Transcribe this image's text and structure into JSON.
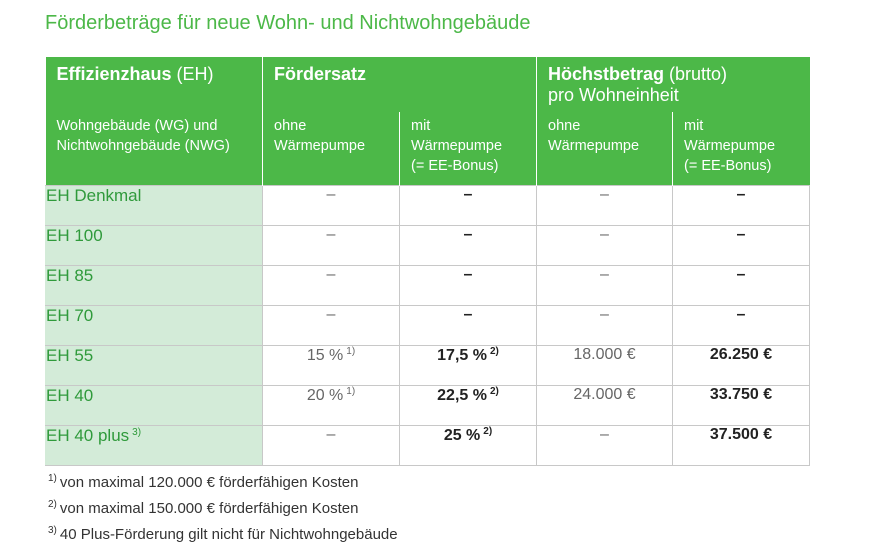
{
  "title": "Förderbeträge für neue Wohn- und Nichtwohngebäude",
  "table": {
    "header": {
      "groups": [
        {
          "bold": "Effizienzhaus",
          "normal": "(EH)"
        },
        {
          "bold": "Fördersatz"
        },
        {
          "bold": "Höchstbetrag",
          "normal": "(brutto)",
          "line2": "pro Wohneinheit"
        }
      ],
      "sub": [
        [
          "Wohngebäude (WG) und",
          "Nichtwohngebäude (NWG)"
        ],
        [
          "ohne",
          "Wärmepumpe"
        ],
        [
          "mit",
          "Wärmepumpe",
          "(= EE-Bonus)"
        ],
        [
          "ohne",
          "Wärmepumpe"
        ],
        [
          "mit",
          "Wärmepumpe",
          "(= EE-Bonus)"
        ]
      ]
    },
    "rows": [
      {
        "label": "EH Denkmal",
        "cells": [
          {
            "text": "–"
          },
          {
            "text": "–"
          },
          {
            "text": "–"
          },
          {
            "text": "–"
          }
        ]
      },
      {
        "label": "EH 100",
        "cells": [
          {
            "text": "–"
          },
          {
            "text": "–"
          },
          {
            "text": "–"
          },
          {
            "text": "–"
          }
        ]
      },
      {
        "label": "EH 85",
        "cells": [
          {
            "text": "–"
          },
          {
            "text": "–"
          },
          {
            "text": "–"
          },
          {
            "text": "–"
          }
        ]
      },
      {
        "label": "EH 70",
        "cells": [
          {
            "text": "–"
          },
          {
            "text": "–"
          },
          {
            "text": "–"
          },
          {
            "text": "–"
          }
        ]
      },
      {
        "label": "EH 55",
        "cells": [
          {
            "text": "15 %",
            "note": "1)"
          },
          {
            "text": "17,5 %",
            "note": "2)"
          },
          {
            "text": "18.000 €"
          },
          {
            "text": "26.250 €"
          }
        ]
      },
      {
        "label": "EH 40",
        "cells": [
          {
            "text": "20 %",
            "note": "1)"
          },
          {
            "text": "22,5 %",
            "note": "2)"
          },
          {
            "text": "24.000 €"
          },
          {
            "text": "33.750 €"
          }
        ]
      },
      {
        "label": "EH 40 plus",
        "note": "3)",
        "cells": [
          {
            "text": "–"
          },
          {
            "text": "25 %",
            "note": "2)"
          },
          {
            "text": "–"
          },
          {
            "text": "37.500 €"
          }
        ]
      }
    ]
  },
  "footnotes": [
    {
      "mark": "1)",
      "text": "von maximal 120.000 € förderfähigen Kosten"
    },
    {
      "mark": "2)",
      "text": "von maximal 150.000 € förderfähigen Kosten"
    },
    {
      "mark": "3)",
      "text": "40 Plus-Förderung gilt nicht für Nichtwohngebäude"
    }
  ]
}
